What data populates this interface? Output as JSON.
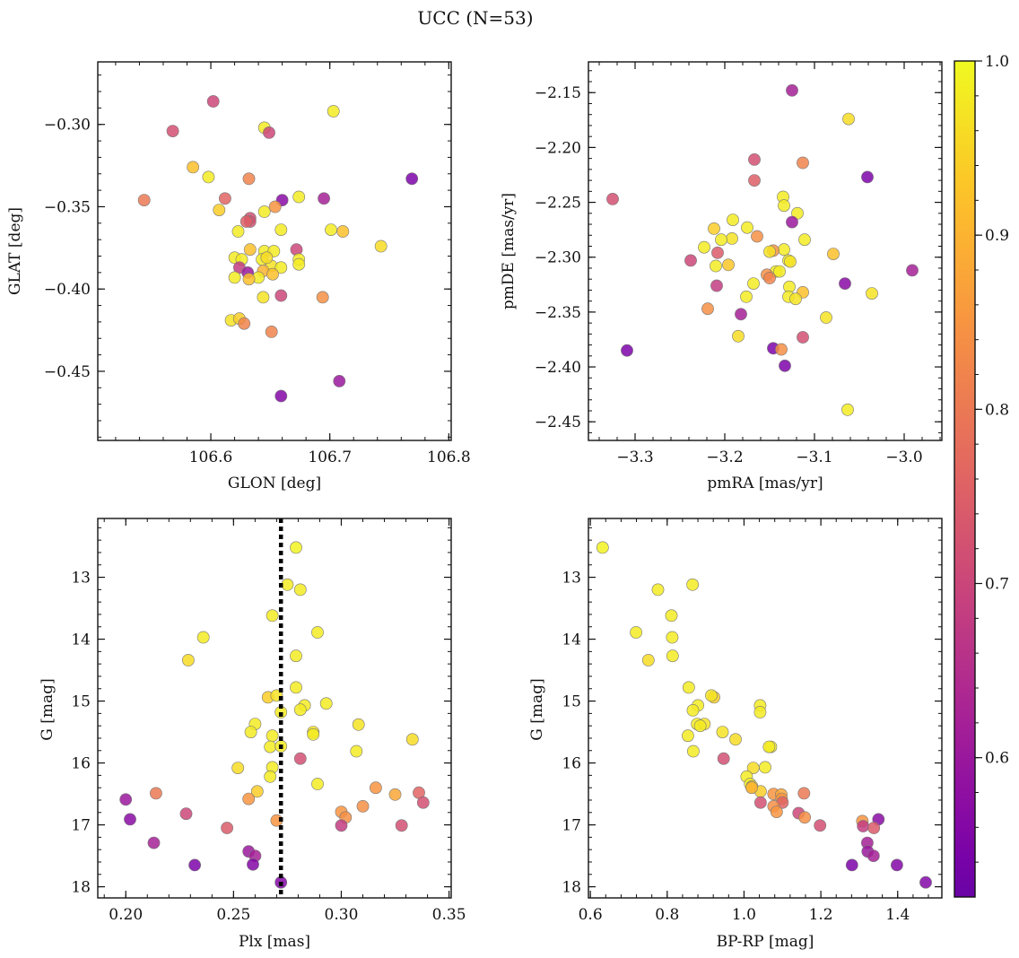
{
  "figure": {
    "title": "UCC (N=53)"
  },
  "colorbar": {
    "colormap": "plasma",
    "range": [
      0.52,
      1.0
    ],
    "ticks": [
      0.6,
      0.7,
      0.8,
      0.9,
      1.0
    ],
    "tick_labels": [
      "0.6",
      "0.7",
      "0.8",
      "0.9",
      "1.0"
    ]
  },
  "cluster_plx": 0.272,
  "chart_data": [
    {
      "type": "scatter",
      "xlabel": "GLON [deg]",
      "ylabel": "GLAT [deg]",
      "xlim": [
        106.505,
        106.802
      ],
      "ylim": [
        -0.492,
        -0.262
      ],
      "xticks": [
        106.6,
        106.7,
        106.8
      ],
      "xtick_labels": [
        "106.6",
        "106.7",
        "106.8"
      ],
      "yticks": [
        -0.3,
        -0.35,
        -0.4,
        -0.45
      ],
      "ytick_labels": [
        "−0.30",
        "−0.35",
        "−0.40",
        "−0.45"
      ],
      "y_inverted": false,
      "points": [
        [
          106.602,
          -0.286,
          0.7
        ],
        [
          106.568,
          -0.304,
          0.72
        ],
        [
          106.645,
          -0.302,
          0.98
        ],
        [
          106.649,
          -0.305,
          0.7
        ],
        [
          106.703,
          -0.292,
          0.98
        ],
        [
          106.585,
          -0.326,
          0.92
        ],
        [
          106.598,
          -0.332,
          0.98
        ],
        [
          106.632,
          -0.333,
          0.82
        ],
        [
          106.544,
          -0.346,
          0.8
        ],
        [
          106.612,
          -0.345,
          0.76
        ],
        [
          106.66,
          -0.346,
          0.57
        ],
        [
          106.695,
          -0.345,
          0.62
        ],
        [
          106.769,
          -0.333,
          0.55
        ],
        [
          106.607,
          -0.352,
          0.94
        ],
        [
          106.645,
          -0.353,
          0.98
        ],
        [
          106.674,
          -0.344,
          0.98
        ],
        [
          106.654,
          -0.35,
          0.85
        ],
        [
          106.633,
          -0.357,
          0.72
        ],
        [
          106.633,
          -0.359,
          0.72
        ],
        [
          106.623,
          -0.365,
          0.98
        ],
        [
          106.659,
          -0.364,
          0.98
        ],
        [
          106.701,
          -0.364,
          0.98
        ],
        [
          106.711,
          -0.365,
          0.92
        ],
        [
          106.743,
          -0.374,
          0.96
        ],
        [
          106.672,
          -0.376,
          0.7
        ],
        [
          106.633,
          -0.376,
          0.92
        ],
        [
          106.645,
          -0.377,
          0.98
        ],
        [
          106.653,
          -0.377,
          0.98
        ],
        [
          106.62,
          -0.381,
          0.98
        ],
        [
          106.626,
          -0.382,
          0.98
        ],
        [
          106.643,
          -0.382,
          0.98
        ],
        [
          106.674,
          -0.382,
          0.98
        ],
        [
          106.674,
          -0.385,
          0.98
        ],
        [
          106.651,
          -0.386,
          0.97
        ],
        [
          106.659,
          -0.387,
          0.98
        ],
        [
          106.624,
          -0.387,
          0.68
        ],
        [
          106.644,
          -0.389,
          0.9
        ],
        [
          106.631,
          -0.39,
          0.6
        ],
        [
          106.652,
          -0.391,
          0.92
        ],
        [
          106.62,
          -0.393,
          0.98
        ],
        [
          106.64,
          -0.393,
          0.98
        ],
        [
          106.632,
          -0.394,
          0.92
        ],
        [
          106.644,
          -0.405,
          0.97
        ],
        [
          106.659,
          -0.404,
          0.7
        ],
        [
          106.694,
          -0.405,
          0.84
        ],
        [
          106.617,
          -0.419,
          0.97
        ],
        [
          106.624,
          -0.418,
          0.94
        ],
        [
          106.628,
          -0.421,
          0.82
        ],
        [
          106.651,
          -0.426,
          0.82
        ],
        [
          106.659,
          -0.465,
          0.56
        ],
        [
          106.708,
          -0.456,
          0.6
        ],
        [
          106.63,
          -0.359,
          0.75
        ],
        [
          106.647,
          -0.381,
          0.96
        ]
      ]
    },
    {
      "type": "scatter",
      "xlabel": "pmRA [mas/yr]",
      "ylabel": "pmDE [mas/yr]",
      "xlim": [
        -3.352,
        -2.958
      ],
      "ylim": [
        -2.467,
        -2.122
      ],
      "xticks": [
        -3.3,
        -3.2,
        -3.1,
        -3.0
      ],
      "xtick_labels": [
        "−3.3",
        "−3.2",
        "−3.1",
        "−3.0"
      ],
      "yticks": [
        -2.15,
        -2.2,
        -2.25,
        -2.3,
        -2.35,
        -2.4,
        -2.45
      ],
      "ytick_labels": [
        "−2.15",
        "−2.20",
        "−2.25",
        "−2.30",
        "−2.35",
        "−2.40",
        "−2.45"
      ],
      "y_inverted": false,
      "points": [
        [
          -3.125,
          -2.148,
          0.62
        ],
        [
          -3.062,
          -2.174,
          0.96
        ],
        [
          -3.167,
          -2.211,
          0.72
        ],
        [
          -3.113,
          -2.214,
          0.82
        ],
        [
          -3.041,
          -2.227,
          0.55
        ],
        [
          -3.167,
          -2.23,
          0.75
        ],
        [
          -3.325,
          -2.247,
          0.72
        ],
        [
          -3.135,
          -2.245,
          0.98
        ],
        [
          -3.134,
          -2.253,
          0.98
        ],
        [
          -3.119,
          -2.26,
          0.98
        ],
        [
          -3.125,
          -2.268,
          0.6
        ],
        [
          -3.191,
          -2.266,
          0.98
        ],
        [
          -3.175,
          -2.273,
          0.98
        ],
        [
          -3.212,
          -2.274,
          0.94
        ],
        [
          -3.164,
          -2.281,
          0.84
        ],
        [
          -3.192,
          -2.283,
          0.97
        ],
        [
          -3.204,
          -2.284,
          0.98
        ],
        [
          -3.111,
          -2.284,
          0.98
        ],
        [
          -3.223,
          -2.291,
          0.98
        ],
        [
          -3.134,
          -2.293,
          0.98
        ],
        [
          -3.146,
          -2.294,
          0.85
        ],
        [
          -3.208,
          -2.296,
          0.74
        ],
        [
          -3.079,
          -2.297,
          0.92
        ],
        [
          -3.238,
          -2.303,
          0.7
        ],
        [
          -3.129,
          -2.303,
          0.98
        ],
        [
          -3.127,
          -2.304,
          0.97
        ],
        [
          -3.196,
          -2.307,
          0.93
        ],
        [
          -3.21,
          -2.308,
          0.98
        ],
        [
          -3.143,
          -2.313,
          0.98
        ],
        [
          -3.139,
          -2.313,
          0.98
        ],
        [
          -3.153,
          -2.316,
          0.84
        ],
        [
          -3.15,
          -2.319,
          0.82
        ],
        [
          -2.991,
          -2.312,
          0.62
        ],
        [
          -3.209,
          -2.326,
          0.68
        ],
        [
          -3.168,
          -2.324,
          0.98
        ],
        [
          -3.128,
          -2.327,
          0.98
        ],
        [
          -3.066,
          -2.324,
          0.57
        ],
        [
          -3.113,
          -2.332,
          0.92
        ],
        [
          -3.036,
          -2.333,
          0.97
        ],
        [
          -3.176,
          -2.336,
          0.98
        ],
        [
          -3.129,
          -2.336,
          0.98
        ],
        [
          -3.121,
          -2.338,
          0.97
        ],
        [
          -3.219,
          -2.347,
          0.84
        ],
        [
          -3.182,
          -2.352,
          0.62
        ],
        [
          -3.087,
          -2.355,
          0.97
        ],
        [
          -3.185,
          -2.372,
          0.96
        ],
        [
          -3.113,
          -2.373,
          0.72
        ],
        [
          -3.309,
          -2.385,
          0.55
        ],
        [
          -3.146,
          -2.383,
          0.55
        ],
        [
          -3.137,
          -2.384,
          0.84
        ],
        [
          -3.133,
          -2.399,
          0.55
        ],
        [
          -3.063,
          -2.439,
          0.98
        ],
        [
          -3.15,
          -2.295,
          0.97
        ]
      ]
    },
    {
      "type": "scatter",
      "xlabel": "Plx [mas]",
      "ylabel": "G [mag]",
      "xlim": [
        0.187,
        0.351
      ],
      "ylim": [
        18.18,
        12.05
      ],
      "xticks": [
        0.2,
        0.25,
        0.3,
        0.35
      ],
      "xtick_labels": [
        "0.20",
        "0.25",
        "0.30",
        "0.35"
      ],
      "yticks": [
        13,
        14,
        15,
        16,
        17,
        18
      ],
      "ytick_labels": [
        "13",
        "14",
        "15",
        "16",
        "17",
        "18"
      ],
      "y_inverted": true,
      "points": [
        [
          0.279,
          12.52,
          0.99
        ],
        [
          0.275,
          13.12,
          0.98
        ],
        [
          0.281,
          13.2,
          0.98
        ],
        [
          0.268,
          13.62,
          0.98
        ],
        [
          0.236,
          13.97,
          0.98
        ],
        [
          0.289,
          13.89,
          0.98
        ],
        [
          0.229,
          14.34,
          0.96
        ],
        [
          0.279,
          14.27,
          0.98
        ],
        [
          0.279,
          14.78,
          0.98
        ],
        [
          0.266,
          14.94,
          0.94
        ],
        [
          0.27,
          14.91,
          0.97
        ],
        [
          0.283,
          15.07,
          0.98
        ],
        [
          0.281,
          15.14,
          0.98
        ],
        [
          0.293,
          15.04,
          0.98
        ],
        [
          0.272,
          15.18,
          0.98
        ],
        [
          0.26,
          15.37,
          0.98
        ],
        [
          0.308,
          15.38,
          0.97
        ],
        [
          0.258,
          15.5,
          0.98
        ],
        [
          0.268,
          15.56,
          0.98
        ],
        [
          0.287,
          15.5,
          0.97
        ],
        [
          0.287,
          15.54,
          0.98
        ],
        [
          0.333,
          15.62,
          0.96
        ],
        [
          0.267,
          15.74,
          0.98
        ],
        [
          0.272,
          15.73,
          0.98
        ],
        [
          0.307,
          15.81,
          0.98
        ],
        [
          0.281,
          15.93,
          0.72
        ],
        [
          0.252,
          16.08,
          0.96
        ],
        [
          0.268,
          16.07,
          0.98
        ],
        [
          0.267,
          16.22,
          0.98
        ],
        [
          0.289,
          16.34,
          0.98
        ],
        [
          0.261,
          16.46,
          0.94
        ],
        [
          0.214,
          16.49,
          0.8
        ],
        [
          0.316,
          16.4,
          0.85
        ],
        [
          0.325,
          16.51,
          0.88
        ],
        [
          0.336,
          16.48,
          0.76
        ],
        [
          0.338,
          16.64,
          0.72
        ],
        [
          0.2,
          16.59,
          0.6
        ],
        [
          0.257,
          16.58,
          0.85
        ],
        [
          0.31,
          16.7,
          0.84
        ],
        [
          0.228,
          16.82,
          0.7
        ],
        [
          0.3,
          16.79,
          0.85
        ],
        [
          0.302,
          16.88,
          0.84
        ],
        [
          0.202,
          16.91,
          0.57
        ],
        [
          0.27,
          16.93,
          0.85
        ],
        [
          0.247,
          17.05,
          0.74
        ],
        [
          0.3,
          17.01,
          0.68
        ],
        [
          0.328,
          17.01,
          0.72
        ],
        [
          0.213,
          17.29,
          0.62
        ],
        [
          0.257,
          17.43,
          0.6
        ],
        [
          0.26,
          17.5,
          0.62
        ],
        [
          0.232,
          17.65,
          0.55
        ],
        [
          0.259,
          17.64,
          0.56
        ],
        [
          0.272,
          17.93,
          0.56
        ]
      ]
    },
    {
      "type": "scatter",
      "xlabel": "BP-RP [mag]",
      "ylabel": "G [mag]",
      "xlim": [
        0.595,
        1.515
      ],
      "ylim": [
        18.18,
        12.05
      ],
      "xticks": [
        0.6,
        0.8,
        1.0,
        1.2,
        1.4
      ],
      "xtick_labels": [
        "0.6",
        "0.8",
        "1.0",
        "1.2",
        "1.4"
      ],
      "yticks": [
        13,
        14,
        15,
        16,
        17,
        18
      ],
      "ytick_labels": [
        "13",
        "14",
        "15",
        "16",
        "17",
        "18"
      ],
      "y_inverted": true,
      "points": [
        [
          0.632,
          12.52,
          0.99
        ],
        [
          0.866,
          13.12,
          0.98
        ],
        [
          0.776,
          13.2,
          0.98
        ],
        [
          0.811,
          13.62,
          0.98
        ],
        [
          0.719,
          13.89,
          0.98
        ],
        [
          0.813,
          13.97,
          0.98
        ],
        [
          0.751,
          14.34,
          0.96
        ],
        [
          0.814,
          14.27,
          0.98
        ],
        [
          0.856,
          14.78,
          0.98
        ],
        [
          0.922,
          14.94,
          0.94
        ],
        [
          0.915,
          14.91,
          0.97
        ],
        [
          0.88,
          15.07,
          0.98
        ],
        [
          1.042,
          15.07,
          0.98
        ],
        [
          0.867,
          15.15,
          0.98
        ],
        [
          1.042,
          15.18,
          0.98
        ],
        [
          0.878,
          15.37,
          0.98
        ],
        [
          0.897,
          15.37,
          0.97
        ],
        [
          0.886,
          15.4,
          0.98
        ],
        [
          0.854,
          15.56,
          0.98
        ],
        [
          0.944,
          15.5,
          0.97
        ],
        [
          0.978,
          15.62,
          0.96
        ],
        [
          1.07,
          15.74,
          0.98
        ],
        [
          1.065,
          15.74,
          0.98
        ],
        [
          0.868,
          15.81,
          0.98
        ],
        [
          0.947,
          15.93,
          0.72
        ],
        [
          1.024,
          16.08,
          0.96
        ],
        [
          1.055,
          16.07,
          0.98
        ],
        [
          1.007,
          16.22,
          0.98
        ],
        [
          1.016,
          16.34,
          0.98
        ],
        [
          1.021,
          16.38,
          0.94
        ],
        [
          1.043,
          16.46,
          0.94
        ],
        [
          1.156,
          16.49,
          0.8
        ],
        [
          1.077,
          16.5,
          0.85
        ],
        [
          1.097,
          16.51,
          0.88
        ],
        [
          1.098,
          16.58,
          0.85
        ],
        [
          1.043,
          16.64,
          0.72
        ],
        [
          1.1,
          16.64,
          0.76
        ],
        [
          1.077,
          16.7,
          0.84
        ],
        [
          1.085,
          16.79,
          0.85
        ],
        [
          1.142,
          16.81,
          0.7
        ],
        [
          1.158,
          16.88,
          0.84
        ],
        [
          1.308,
          16.94,
          0.85
        ],
        [
          1.35,
          16.91,
          0.57
        ],
        [
          1.198,
          17.01,
          0.72
        ],
        [
          1.31,
          17.02,
          0.68
        ],
        [
          1.338,
          17.05,
          0.74
        ],
        [
          1.321,
          17.29,
          0.62
        ],
        [
          1.322,
          17.43,
          0.6
        ],
        [
          1.337,
          17.5,
          0.62
        ],
        [
          1.281,
          17.65,
          0.55
        ],
        [
          1.398,
          17.65,
          0.56
        ],
        [
          1.473,
          17.93,
          0.56
        ],
        [
          1.02,
          16.4,
          0.9
        ]
      ]
    }
  ]
}
